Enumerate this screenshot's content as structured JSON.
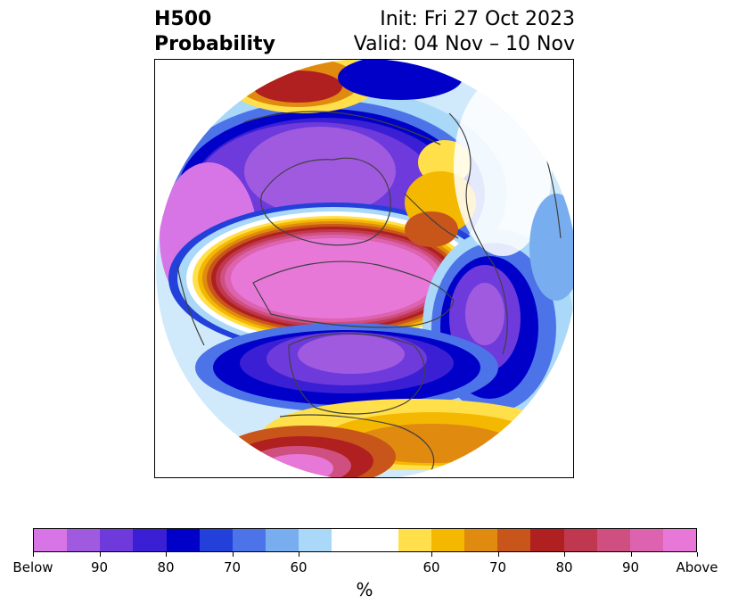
{
  "title": {
    "left_line1": "H500",
    "left_line2": "Probability",
    "right_line1": "Init: Fri 27 Oct 2023",
    "right_line2": "Valid: 04 Nov – 10 Nov"
  },
  "colorbar": {
    "colors": [
      "#d875e6",
      "#a05ae0",
      "#6e3adb",
      "#3a1fd4",
      "#0000c8",
      "#2340da",
      "#4c74e8",
      "#78aef0",
      "#aad8f8",
      "#ffffff",
      "#ffffff",
      "#ffe04a",
      "#f5b800",
      "#e08a10",
      "#c8561a",
      "#b02020",
      "#c03850",
      "#cf5080",
      "#dd62b0",
      "#e878d8"
    ],
    "tick_labels": [
      "Below",
      "90",
      "80",
      "70",
      "60",
      "60",
      "70",
      "80",
      "90",
      "Above"
    ],
    "unit_label": "%"
  },
  "palette": {
    "below_strong": "#d875e6",
    "below_mid": "#3a1fd4",
    "below_weak": "#aad8f8",
    "above_weak": "#ffe04a",
    "above_mid": "#b02020",
    "above_strong": "#e878d8",
    "coast": "#404040"
  }
}
